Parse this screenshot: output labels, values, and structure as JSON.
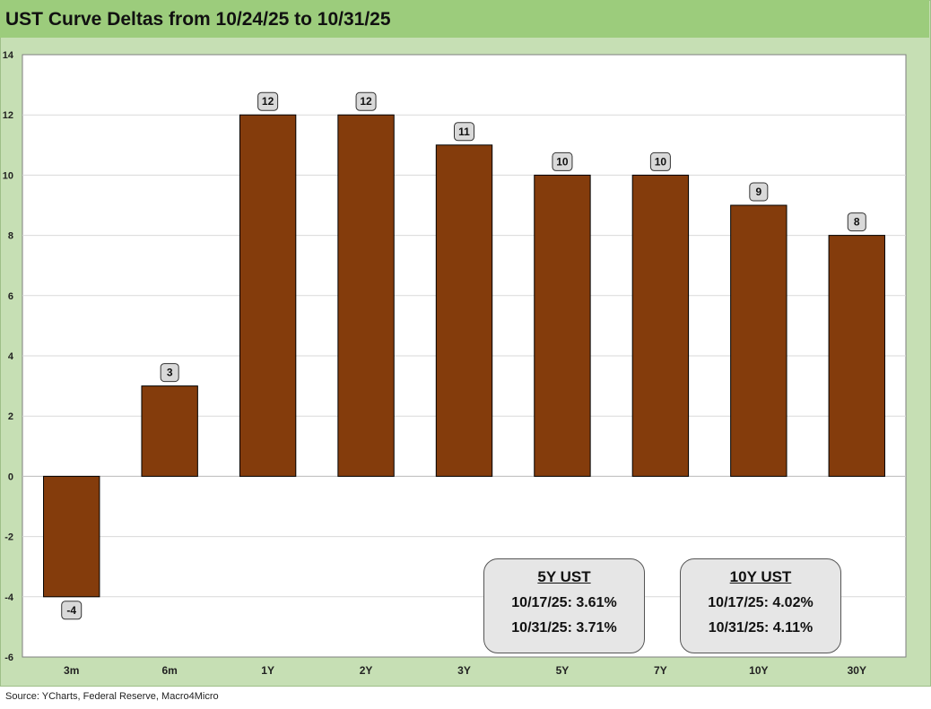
{
  "chart_data": {
    "type": "bar",
    "title": "UST Curve Deltas from 10/24/25 to 10/31/25",
    "categories": [
      "3m",
      "6m",
      "1Y",
      "2Y",
      "3Y",
      "5Y",
      "7Y",
      "10Y",
      "30Y"
    ],
    "values": [
      -4,
      3,
      12,
      12,
      11,
      10,
      10,
      9,
      8
    ],
    "xlabel": "",
    "ylabel": "",
    "ylim": [
      -6,
      14
    ],
    "yticks": [
      14,
      12,
      10,
      8,
      6,
      4,
      2,
      0,
      -2,
      -4,
      -6
    ],
    "grid": true,
    "bar_color": "#843c0c",
    "label_box_color": "#d9d9d9"
  },
  "boxes": [
    {
      "title": "5Y UST",
      "line1": "10/17/25: 3.61%",
      "line2": "10/31/25: 3.71%"
    },
    {
      "title": "10Y UST",
      "line1": "10/17/25: 4.02%",
      "line2": "10/31/25: 4.11%"
    }
  ],
  "source": "Source: YCharts, Federal Reserve, Macro4Micro",
  "colors": {
    "frame": "#c6dfb4",
    "title_bar": "#9ccc7c",
    "plot_bg": "#ffffff",
    "grid": "#d9d9d9"
  }
}
